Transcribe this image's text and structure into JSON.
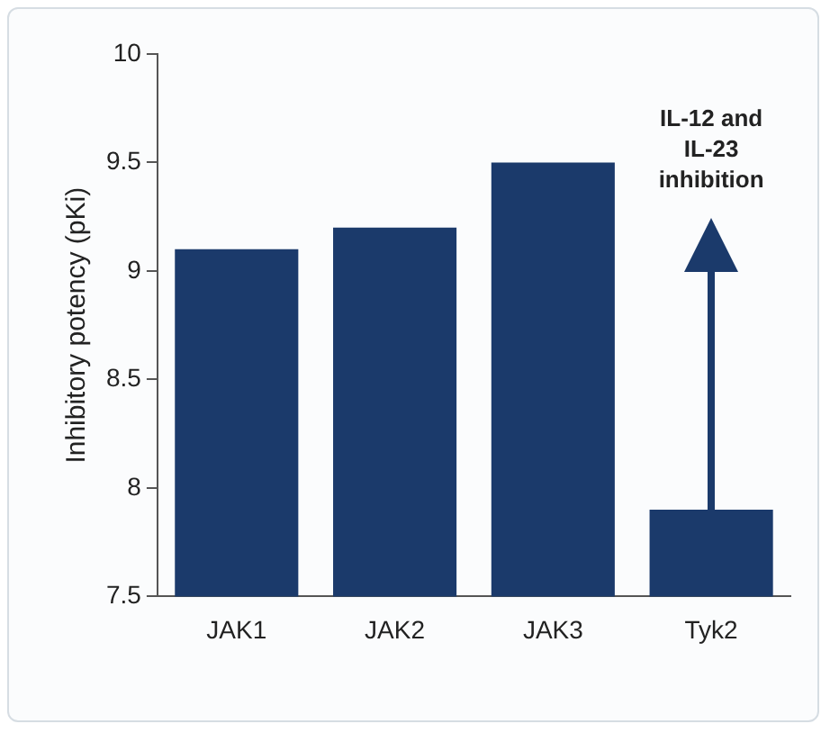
{
  "chart_data": {
    "type": "bar",
    "ylabel": "Inhibitory potency (pKi)",
    "categories": [
      "JAK1",
      "JAK2",
      "JAK3",
      "Tyk2"
    ],
    "values": [
      9.1,
      9.2,
      9.5,
      7.9
    ],
    "color": "#1b3a6b",
    "ylim": [
      7.5,
      10
    ],
    "yticks": [
      7.5,
      8,
      8.5,
      9,
      9.5,
      10
    ],
    "grid": false,
    "legend": false,
    "annotations": [
      "IL-12 and IL-23 inhibition"
    ]
  }
}
